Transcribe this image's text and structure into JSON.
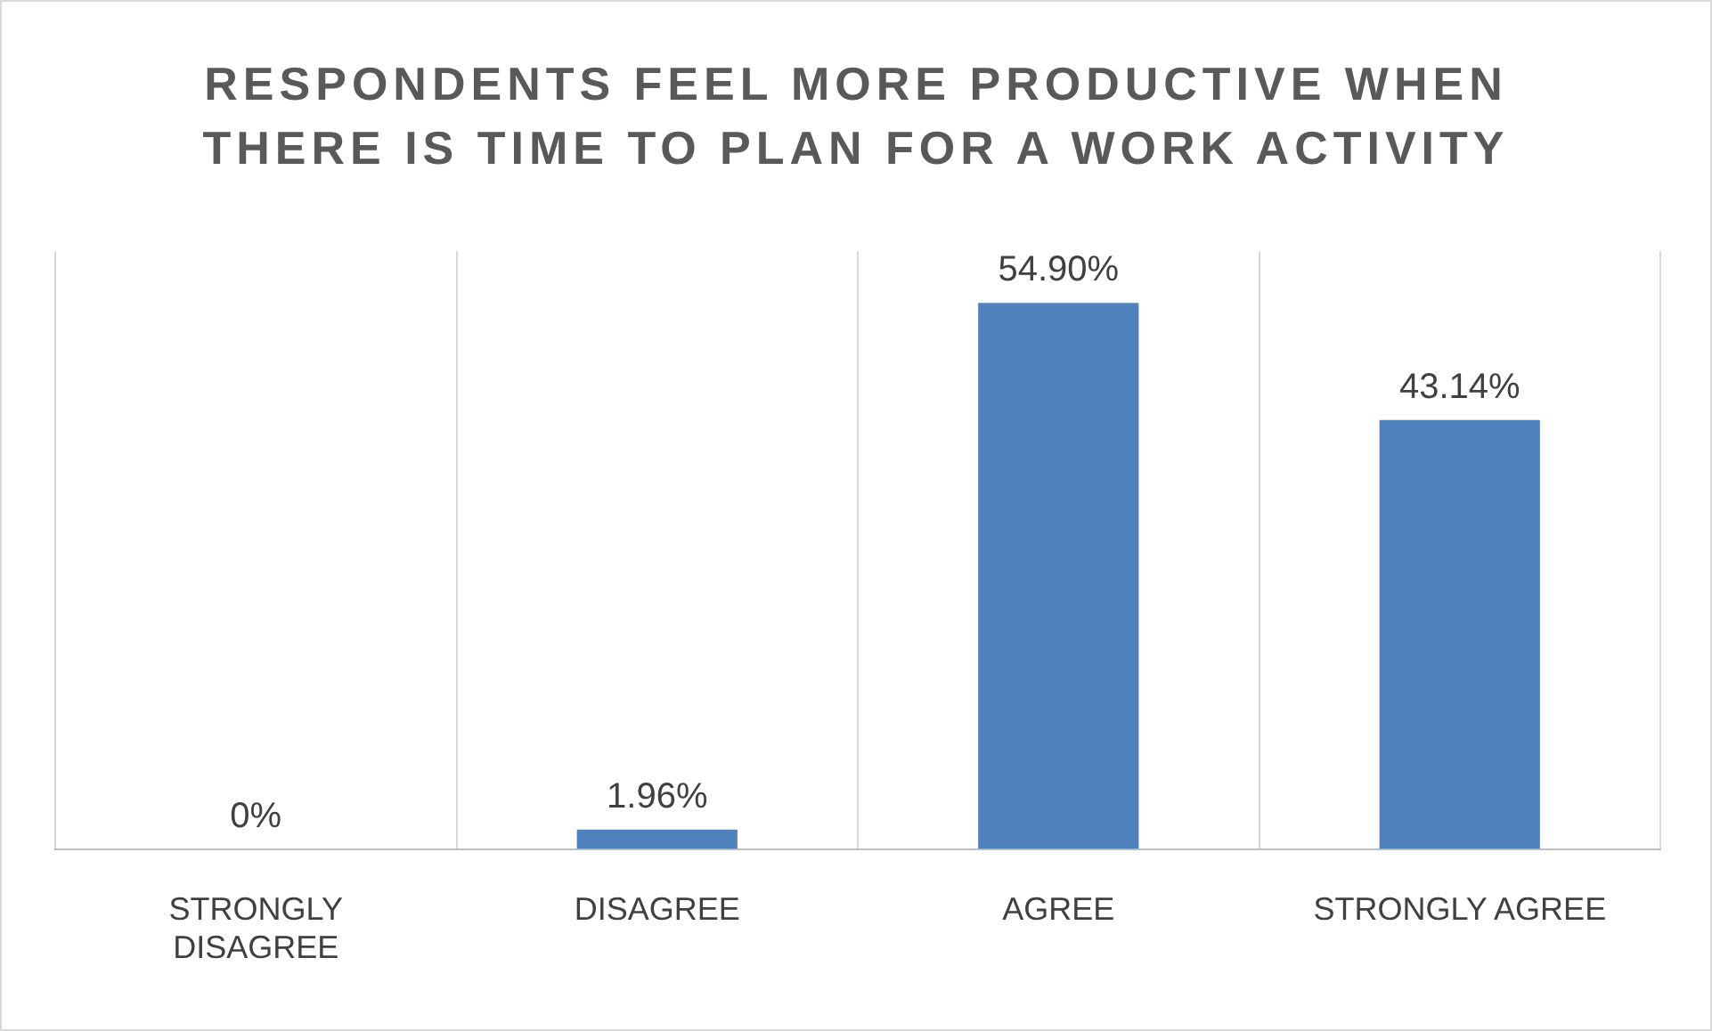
{
  "chart_data": {
    "type": "bar",
    "title": "RESPONDENTS FEEL MORE PRODUCTIVE WHEN THERE IS TIME TO PLAN FOR A WORK ACTIVITY",
    "categories": [
      "STRONGLY DISAGREE",
      "DISAGREE",
      "AGREE",
      "STRONGLY AGREE"
    ],
    "values": [
      0,
      1.96,
      54.9,
      43.14
    ],
    "value_labels": [
      "0%",
      "1.96%",
      "54.90%",
      "43.14%"
    ],
    "color": "#4f81bd",
    "grid": "x",
    "legend": false
  }
}
